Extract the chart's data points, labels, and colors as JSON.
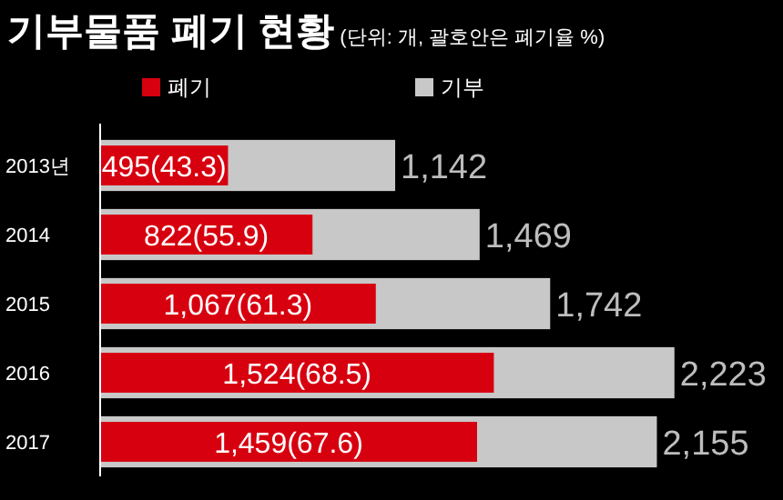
{
  "chart_data": {
    "type": "bar",
    "orientation": "horizontal",
    "title": "기부물품 폐기 현황",
    "subtitle": "(단위: 개, 괄호안은 폐기율 %)",
    "categories": [
      "2013년",
      "2014",
      "2015",
      "2016",
      "2017"
    ],
    "tick_labels": "y",
    "legend": "top left",
    "series": [
      {
        "name": "기부",
        "color": "#c8c8c8",
        "values": [
          1142,
          1469,
          1742,
          2223,
          2155
        ],
        "value_labels": [
          "1,142",
          "1,469",
          "1,742",
          "2,223",
          "2,155"
        ]
      },
      {
        "name": "폐기",
        "color": "#d7000f",
        "values": [
          495,
          822,
          1067,
          1524,
          1459
        ],
        "value_labels": [
          "495(43.3)",
          "822(55.9)",
          "1,067(61.3)",
          "1,524(68.5)",
          "1,459(67.6)"
        ]
      }
    ]
  }
}
